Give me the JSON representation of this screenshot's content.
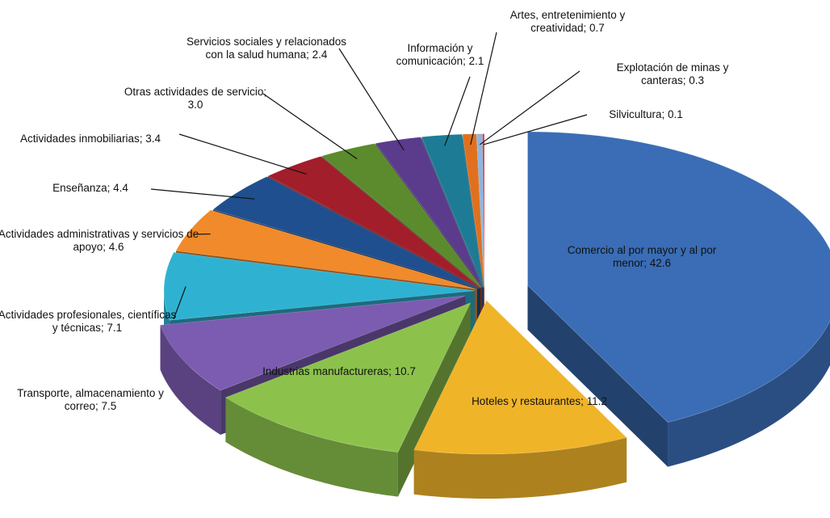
{
  "chart_data": {
    "type": "pie3d",
    "categories": [
      "Comercio al por mayor y al por menor;",
      "Hoteles y restaurantes;",
      "Industrias manufactureras;",
      "Transporte, almacenamiento y correo;",
      "Actividades profesionales, científicas y técnicas;",
      "Actividades administrativas y servicios de apoyo;",
      "Enseñanza;",
      "Actividades inmobiliarias;",
      "Otras actividades de servicio;",
      "Servicios sociales y relacionados con la salud humana;",
      "Información y comunicación;",
      "Artes, entretenimiento y creatividad;",
      "Explotación de minas y canteras;",
      "Silvicultura;"
    ],
    "values": [
      42.6,
      11.2,
      10.7,
      7.5,
      7.1,
      4.6,
      4.4,
      3.4,
      3.0,
      2.4,
      2.1,
      0.7,
      0.3,
      0.1
    ],
    "value_labels": [
      "42.6",
      "11.2",
      "10.7",
      "7.5",
      "7.1",
      "4.6",
      "4.4",
      "3.4",
      "3.0",
      "2.4",
      "2.1",
      "0.7",
      "0.3",
      "0.1"
    ],
    "colors": [
      "#3a6db5",
      "#f0b429",
      "#8cc24c",
      "#7b5cb0",
      "#2fb2d2",
      "#f08a2a",
      "#1f4f8e",
      "#a11e2a",
      "#5b8b2c",
      "#5a3b8c",
      "#1e7b96",
      "#e0701e",
      "#8cb5e2",
      "#d24040"
    ]
  }
}
